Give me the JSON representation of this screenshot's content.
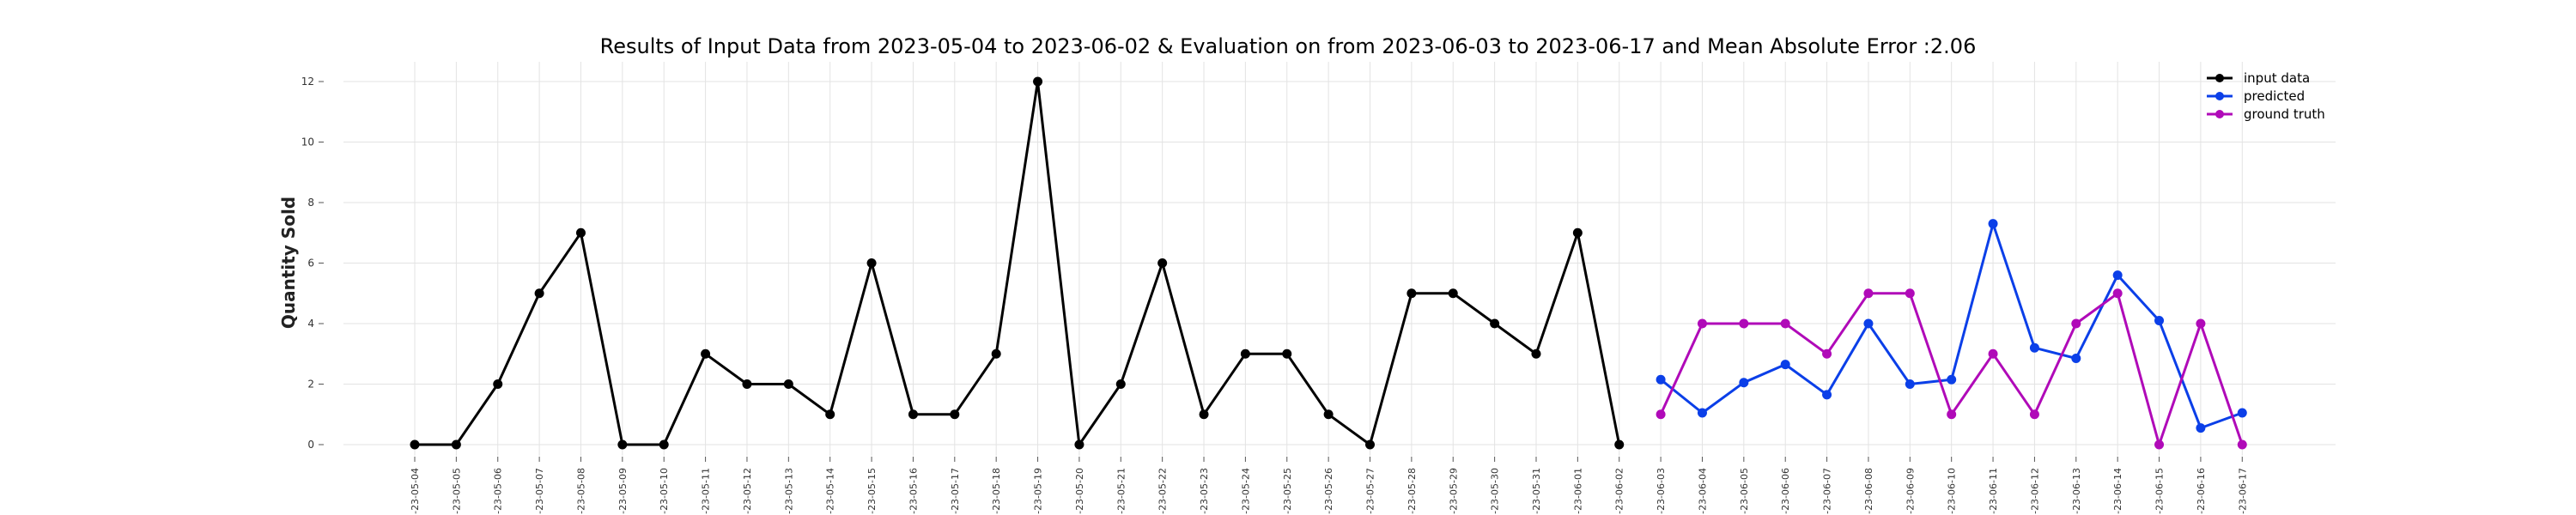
{
  "chart_data": {
    "type": "line",
    "title": "Results of Input Data from 2023-05-04 to 2023-06-02 & Evaluation on from 2023-06-03 to 2023-06-17 and Mean Absolute Error  :2.06",
    "xlabel": "",
    "ylabel": "Quantity Sold",
    "ylim": [
      -0.5,
      12.5
    ],
    "yticks": [
      0,
      2,
      4,
      6,
      8,
      10,
      12
    ],
    "x": [
      "2023-05-04",
      "2023-05-05",
      "2023-05-06",
      "2023-05-07",
      "2023-05-08",
      "2023-05-09",
      "2023-05-10",
      "2023-05-11",
      "2023-05-12",
      "2023-05-13",
      "2023-05-14",
      "2023-05-15",
      "2023-05-16",
      "2023-05-17",
      "2023-05-18",
      "2023-05-19",
      "2023-05-20",
      "2023-05-21",
      "2023-05-22",
      "2023-05-23",
      "2023-05-24",
      "2023-05-25",
      "2023-05-26",
      "2023-05-27",
      "2023-05-28",
      "2023-05-29",
      "2023-05-30",
      "2023-05-31",
      "2023-06-01",
      "2023-06-02",
      "2023-06-03",
      "2023-06-04",
      "2023-06-05",
      "2023-06-06",
      "2023-06-07",
      "2023-06-08",
      "2023-06-09",
      "2023-06-10",
      "2023-06-11",
      "2023-06-12",
      "2023-06-13",
      "2023-06-14",
      "2023-06-15",
      "2023-06-16",
      "2023-06-17"
    ],
    "tick_labels": [
      "-23-05-04",
      "-23-05-05",
      "-23-05-06",
      "-23-05-07",
      "-23-05-08",
      "-23-05-09",
      "-23-05-10",
      "-23-05-11",
      "-23-05-12",
      "-23-05-13",
      "-23-05-14",
      "-23-05-15",
      "-23-05-16",
      "-23-05-17",
      "-23-05-18",
      "-23-05-19",
      "-23-05-20",
      "-23-05-21",
      "-23-05-22",
      "-23-05-23",
      "-23-05-24",
      "-23-05-25",
      "-23-05-26",
      "-23-05-27",
      "-23-05-28",
      "-23-05-29",
      "-23-05-30",
      "-23-05-31",
      "-23-06-01",
      "-23-06-02",
      "-23-06-03",
      "-23-06-04",
      "-23-06-05",
      "-23-06-06",
      "-23-06-07",
      "-23-06-08",
      "-23-06-09",
      "-23-06-10",
      "-23-06-11",
      "-23-06-12",
      "-23-06-13",
      "-23-06-14",
      "-23-06-15",
      "-23-06-16",
      "-23-06-17"
    ],
    "series": [
      {
        "name": "input data",
        "color": "#000000",
        "x": [
          "2023-05-04",
          "2023-05-05",
          "2023-05-06",
          "2023-05-07",
          "2023-05-08",
          "2023-05-09",
          "2023-05-10",
          "2023-05-11",
          "2023-05-12",
          "2023-05-13",
          "2023-05-14",
          "2023-05-15",
          "2023-05-16",
          "2023-05-17",
          "2023-05-18",
          "2023-05-19",
          "2023-05-20",
          "2023-05-21",
          "2023-05-22",
          "2023-05-23",
          "2023-05-24",
          "2023-05-25",
          "2023-05-26",
          "2023-05-27",
          "2023-05-28",
          "2023-05-29",
          "2023-05-30",
          "2023-05-31",
          "2023-06-01",
          "2023-06-02"
        ],
        "values": [
          0,
          0,
          2,
          5,
          7,
          0,
          0,
          3,
          2,
          2,
          1,
          6,
          1,
          1,
          3,
          12,
          0,
          2,
          6,
          1,
          3,
          3,
          1,
          0,
          5,
          5,
          4,
          3,
          7,
          0
        ]
      },
      {
        "name": "predicted",
        "color": "#0b3fe8",
        "x": [
          "2023-06-03",
          "2023-06-04",
          "2023-06-05",
          "2023-06-06",
          "2023-06-07",
          "2023-06-08",
          "2023-06-09",
          "2023-06-10",
          "2023-06-11",
          "2023-06-12",
          "2023-06-13",
          "2023-06-14",
          "2023-06-15",
          "2023-06-16",
          "2023-06-17"
        ],
        "values": [
          2.15,
          1.05,
          2.05,
          2.65,
          1.65,
          4.0,
          2.0,
          2.15,
          7.3,
          3.2,
          2.85,
          5.6,
          4.1,
          0.55,
          1.05
        ]
      },
      {
        "name": "ground truth",
        "color": "#b00ab8",
        "x": [
          "2023-06-03",
          "2023-06-04",
          "2023-06-05",
          "2023-06-06",
          "2023-06-07",
          "2023-06-08",
          "2023-06-09",
          "2023-06-10",
          "2023-06-11",
          "2023-06-12",
          "2023-06-13",
          "2023-06-14",
          "2023-06-15",
          "2023-06-16",
          "2023-06-17"
        ],
        "values": [
          1,
          4,
          4,
          4,
          3,
          5,
          5,
          1,
          3,
          1,
          4,
          5,
          0,
          4,
          0
        ]
      }
    ],
    "grid": true,
    "legend": "top-right"
  }
}
